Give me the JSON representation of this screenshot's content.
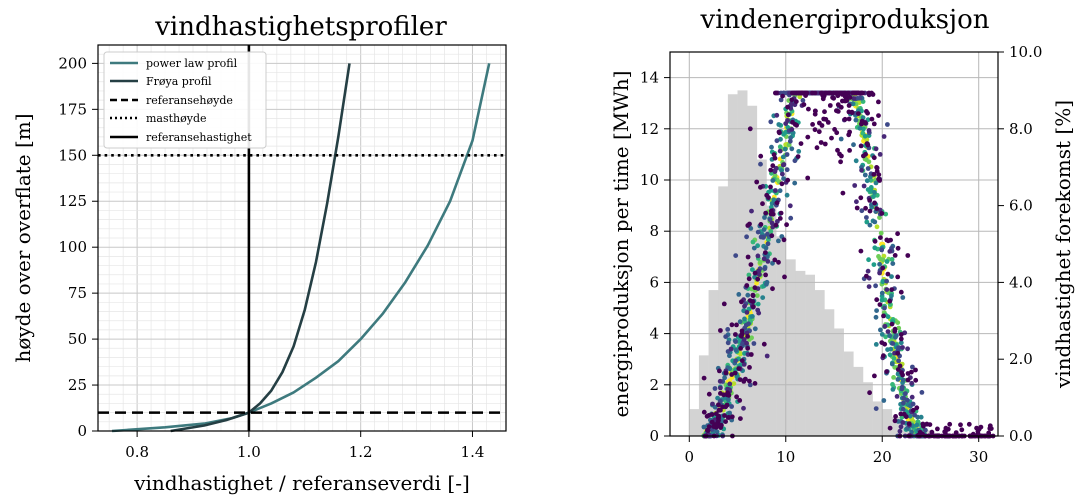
{
  "chart_data": [
    {
      "type": "line",
      "title": "vindhastighetsprofiler",
      "xlabel": "vindhastighet / referanseverdi [-]",
      "ylabel": "høyde over overflate [m]",
      "xlim": [
        0.73,
        1.46
      ],
      "ylim": [
        0,
        210
      ],
      "xticks": [
        "0.8",
        "1.0",
        "1.2",
        "1.4"
      ],
      "yticks": [
        "0",
        "25",
        "50",
        "75",
        "100",
        "125",
        "150",
        "175",
        "200"
      ],
      "grid": true,
      "legend_position": "top-left",
      "series": [
        {
          "name": "power law profil",
          "color": "#3e7a7e",
          "x": [
            0.755,
            0.85,
            0.92,
            0.97,
            1.0,
            1.04,
            1.08,
            1.12,
            1.16,
            1.2,
            1.24,
            1.28,
            1.32,
            1.36,
            1.4,
            1.43
          ],
          "y": [
            0,
            2,
            4,
            7,
            10,
            15,
            21,
            29,
            38,
            50,
            64,
            81,
            101,
            125,
            158,
            200
          ]
        },
        {
          "name": "Frøya profil",
          "color": "#253f44",
          "x": [
            0.86,
            0.92,
            0.96,
            0.99,
            1.0,
            1.02,
            1.04,
            1.06,
            1.08,
            1.1,
            1.12,
            1.14,
            1.16,
            1.18
          ],
          "y": [
            0,
            3,
            6,
            9,
            10,
            15,
            22,
            32,
            46,
            66,
            92,
            124,
            160,
            200
          ]
        }
      ],
      "reference_lines": [
        {
          "name": "referansehøyde",
          "orientation": "horizontal",
          "value": 10,
          "style": "dashed"
        },
        {
          "name": "masthøyde",
          "orientation": "horizontal",
          "value": 150,
          "style": "dotted"
        },
        {
          "name": "referansehastighet",
          "orientation": "vertical",
          "value": 1.0,
          "style": "solid"
        }
      ]
    },
    {
      "type": "scatter",
      "title": "vindenergiproduksjon",
      "xlabel": "",
      "ylabel": "energiproduksjon per time [MWh]",
      "ylabel_right": "vindhastighet forekomst [%]",
      "xlim": [
        -2,
        32
      ],
      "ylim": [
        0,
        15
      ],
      "ylim_right": [
        0,
        10
      ],
      "xticks": [
        "0",
        "10",
        "20",
        "30"
      ],
      "yticks": [
        "0",
        "2",
        "4",
        "6",
        "8",
        "10",
        "12",
        "14"
      ],
      "yticks_right": [
        "0.0",
        "2.0",
        "4.0",
        "6.0",
        "8.0",
        "10.0"
      ],
      "grid": true,
      "power_curve": {
        "x": [
          1.5,
          2,
          3,
          4,
          5,
          6,
          7,
          8,
          9,
          10,
          11,
          12,
          17,
          18,
          19,
          20,
          21,
          22,
          23,
          24
        ],
        "y": [
          0,
          0.2,
          0.8,
          1.8,
          3.0,
          4.4,
          6.0,
          7.8,
          9.8,
          11.8,
          13.4,
          13.4,
          13.4,
          12.0,
          9.8,
          7.0,
          4.2,
          2.0,
          0.6,
          0
        ]
      },
      "histogram": {
        "color": "#d3d3d3",
        "bin_width": 1,
        "bins_start": [
          0,
          1,
          2,
          3,
          4,
          5,
          6,
          7,
          8,
          9,
          10,
          11,
          12,
          13,
          14,
          15,
          16,
          17,
          18,
          19,
          20,
          21,
          22,
          23,
          24,
          25,
          26,
          27,
          28
        ],
        "percent": [
          0.7,
          2.1,
          3.8,
          6.5,
          8.9,
          9.0,
          8.6,
          7.2,
          6.0,
          5.2,
          4.6,
          4.3,
          4.2,
          3.8,
          3.3,
          2.8,
          2.2,
          1.8,
          1.4,
          0.9,
          0.7,
          0.5,
          0.35,
          0.25,
          0.15,
          0.08,
          0.05,
          0.03,
          0.02
        ]
      }
    }
  ]
}
